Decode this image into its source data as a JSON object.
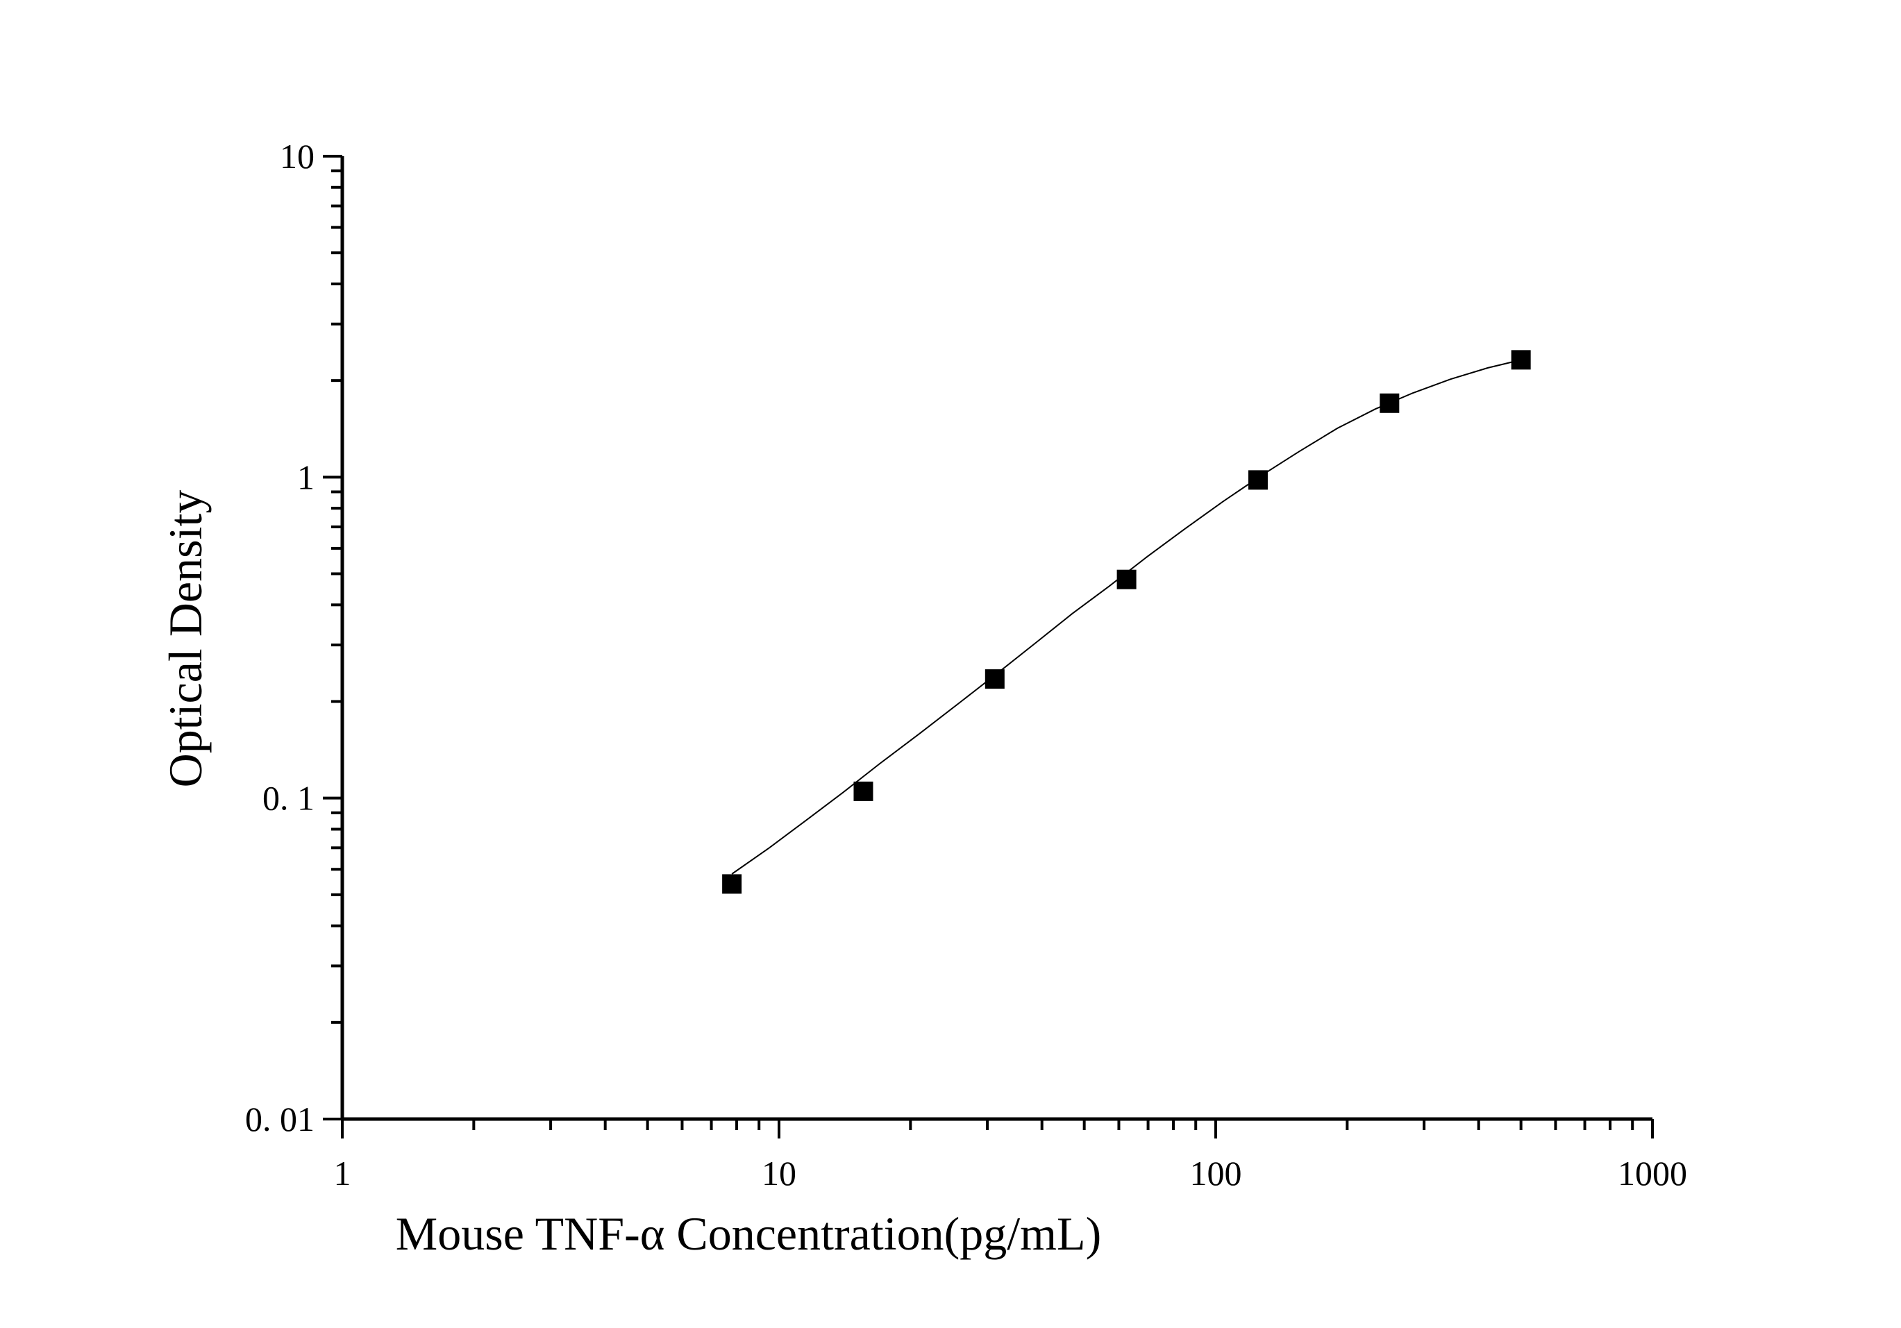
{
  "chart_data": {
    "type": "scatter",
    "xlabel": "Mouse TNF-α Concentration(pg/mL)",
    "ylabel": "Optical Density",
    "xscale": "log",
    "yscale": "log",
    "xlim": [
      1,
      1000
    ],
    "ylim": [
      0.01,
      10
    ],
    "x_ticks": [
      "1",
      "10",
      "100",
      "1000"
    ],
    "y_ticks": [
      "0. 01",
      "0. 1",
      "1",
      "10"
    ],
    "grid": false,
    "legend": "none",
    "series": [
      {
        "marker": "square",
        "x": [
          7.8,
          15.6,
          31.2,
          62.5,
          125,
          250,
          500
        ],
        "y": [
          0.054,
          0.105,
          0.235,
          0.48,
          0.98,
          1.7,
          2.32
        ]
      }
    ],
    "fit_curve": {
      "type": "four-parameter logistic",
      "x": [
        7.8,
        9.5,
        11.5,
        14,
        17,
        21,
        26,
        32,
        39,
        47,
        57,
        70,
        85,
        104,
        127,
        155,
        190,
        232,
        283,
        345,
        420,
        500
      ],
      "y": [
        0.058,
        0.07,
        0.085,
        0.104,
        0.128,
        0.159,
        0.199,
        0.248,
        0.307,
        0.376,
        0.457,
        0.568,
        0.69,
        0.84,
        1.01,
        1.2,
        1.42,
        1.63,
        1.83,
        2.02,
        2.19,
        2.32
      ]
    },
    "colors": {
      "axis": "#000000",
      "marker": "#000000",
      "curve": "#000000"
    }
  }
}
